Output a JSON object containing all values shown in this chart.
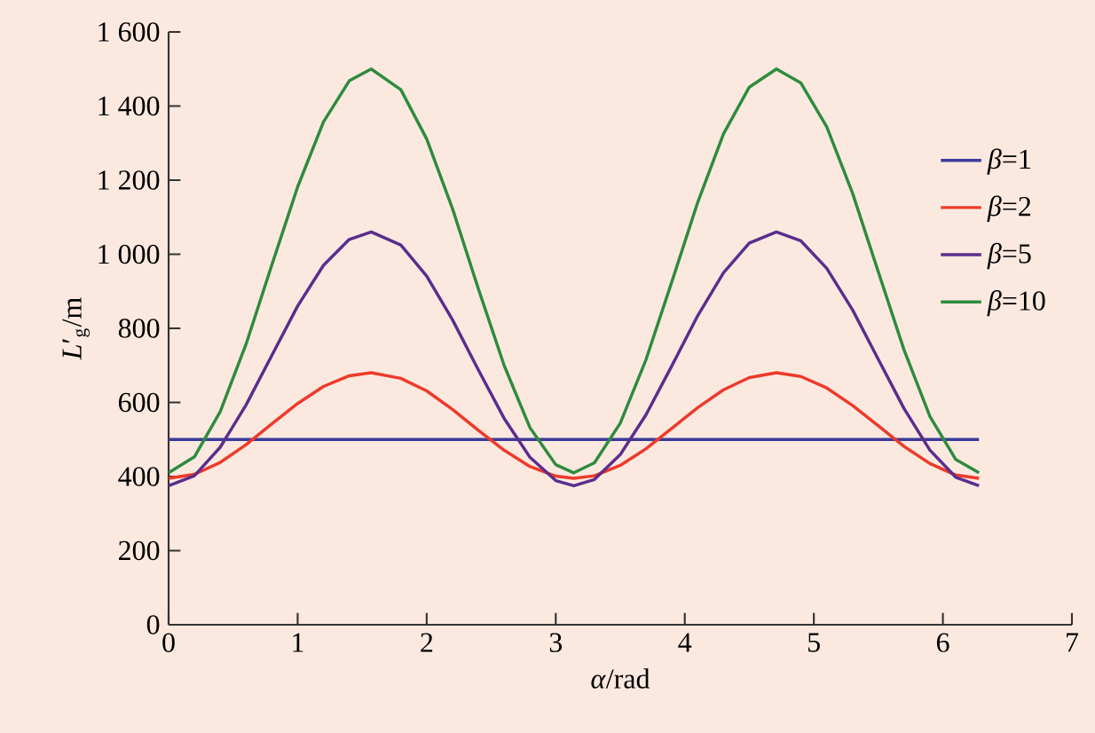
{
  "chart_data": {
    "type": "line",
    "xlabel": "*α*/rad",
    "ylabel": "*L*′$_{g}$/m",
    "x": [
      0,
      0.2,
      0.4,
      0.6,
      0.8,
      1.0,
      1.2,
      1.4,
      1.57,
      1.8,
      2.0,
      2.2,
      2.4,
      2.6,
      2.8,
      3.0,
      3.14,
      3.3,
      3.5,
      3.7,
      3.9,
      4.1,
      4.3,
      4.5,
      4.71,
      4.9,
      5.1,
      5.3,
      5.5,
      5.7,
      5.9,
      6.1,
      6.28
    ],
    "series": [
      {
        "name": "*β*=1",
        "color": "#3b3b9a",
        "x": [
          0,
          6.28
        ],
        "values": [
          500,
          500
        ]
      },
      {
        "name": "*β*=2",
        "color": "#ee3a2a",
        "values": [
          395,
          406,
          438,
          486,
          542,
          597,
          643,
          672,
          680,
          665,
          631,
          581,
          525,
          471,
          427,
          401,
          395,
          402,
          430,
          475,
          530,
          586,
          634,
          667,
          680,
          670,
          639,
          592,
          537,
          481,
          435,
          404,
          395
        ]
      },
      {
        "name": "*β*=5",
        "color": "#5b2d8c",
        "values": [
          375,
          402,
          479,
          593,
          727,
          860,
          970,
          1040,
          1060,
          1025,
          941,
          823,
          688,
          557,
          452,
          389,
          375,
          392,
          459,
          567,
          699,
          834,
          950,
          1030,
          1060,
          1036,
          962,
          850,
          716,
          583,
          471,
          398,
          375
        ]
      },
      {
        "name": "*β*=10",
        "color": "#2e8b3e",
        "values": [
          410,
          453,
          575,
          757,
          971,
          1182,
          1357,
          1468,
          1500,
          1444,
          1311,
          1123,
          907,
          700,
          532,
          432,
          410,
          437,
          544,
          716,
          926,
          1140,
          1325,
          1451,
          1500,
          1462,
          1344,
          1165,
          952,
          741,
          562,
          446,
          410
        ]
      }
    ],
    "xlim": [
      0,
      7
    ],
    "xticks": [
      0,
      1,
      2,
      3,
      4,
      5,
      6,
      7
    ],
    "ylim": [
      0,
      1600
    ],
    "yticks": [
      0,
      200,
      400,
      600,
      800,
      {
        "value": 1000,
        "label": "1 000"
      },
      {
        "value": 1200,
        "label": "1 200"
      },
      {
        "value": 1400,
        "label": "1 400"
      },
      {
        "value": 1600,
        "label": "1 600"
      }
    ],
    "legend": "right"
  }
}
